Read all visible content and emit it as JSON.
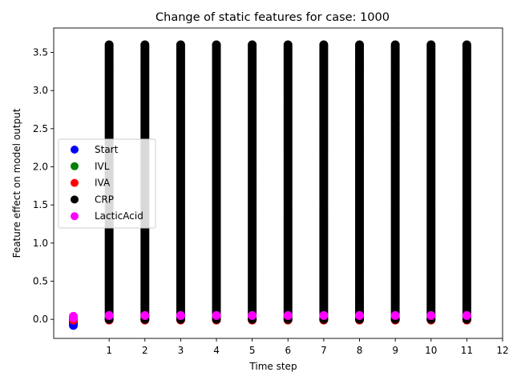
{
  "chart_data": {
    "type": "scatter",
    "title": "Change of static features for case: 1000",
    "xlabel": "Time step",
    "ylabel": "Feature effect on model output",
    "xlim": [
      -0.55,
      12.0
    ],
    "ylim": [
      -0.25,
      3.82
    ],
    "xticks": [
      1,
      2,
      3,
      4,
      5,
      6,
      7,
      8,
      9,
      10,
      11,
      12
    ],
    "xtick_labels": [
      "1",
      "2",
      "3",
      "4",
      "5",
      "6",
      "7",
      "8",
      "9",
      "10",
      "11",
      "12"
    ],
    "yticks": [
      0.0,
      0.5,
      1.0,
      1.5,
      2.0,
      2.5,
      3.0,
      3.5
    ],
    "ytick_labels": [
      "0.0",
      "0.5",
      "1.0",
      "1.5",
      "2.0",
      "2.5",
      "3.0",
      "3.5"
    ],
    "grid": false,
    "legend_position": "center-left",
    "series": [
      {
        "name": "Start",
        "color": "#0000ff",
        "points": [
          [
            0,
            -0.08
          ],
          [
            0,
            -0.05
          ],
          [
            0,
            -0.03
          ]
        ]
      },
      {
        "name": "IVL",
        "color": "#008000",
        "points": [
          [
            0,
            0.0
          ],
          [
            1,
            0.0
          ],
          [
            2,
            0.0
          ],
          [
            3,
            0.0
          ],
          [
            4,
            0.0
          ],
          [
            5,
            0.0
          ],
          [
            6,
            0.0
          ],
          [
            7,
            0.0
          ],
          [
            8,
            0.0
          ],
          [
            9,
            0.0
          ],
          [
            10,
            0.0
          ],
          [
            11,
            0.0
          ]
        ]
      },
      {
        "name": "IVA",
        "color": "#ff0000",
        "points": [
          [
            0,
            -0.01
          ],
          [
            1,
            -0.01
          ],
          [
            2,
            -0.01
          ],
          [
            3,
            -0.01
          ],
          [
            4,
            -0.01
          ],
          [
            5,
            -0.01
          ],
          [
            6,
            -0.01
          ],
          [
            7,
            -0.01
          ],
          [
            8,
            -0.01
          ],
          [
            9,
            -0.01
          ],
          [
            10,
            -0.01
          ],
          [
            11,
            -0.01
          ]
        ]
      },
      {
        "name": "CRP",
        "color": "#000000",
        "columns": [
          1,
          2,
          3,
          4,
          5,
          6,
          7,
          8,
          9,
          10,
          11
        ],
        "y_range": [
          0.0,
          3.62
        ],
        "start_point": [
          0,
          0.02
        ]
      },
      {
        "name": "LacticAcid",
        "color": "#ff00ff",
        "points": [
          [
            0,
            0.02
          ],
          [
            0,
            0.04
          ],
          [
            1,
            0.05
          ],
          [
            2,
            0.05
          ],
          [
            3,
            0.05
          ],
          [
            4,
            0.05
          ],
          [
            5,
            0.05
          ],
          [
            6,
            0.05
          ],
          [
            7,
            0.05
          ],
          [
            8,
            0.05
          ],
          [
            9,
            0.05
          ],
          [
            10,
            0.05
          ],
          [
            11,
            0.05
          ]
        ]
      }
    ]
  }
}
